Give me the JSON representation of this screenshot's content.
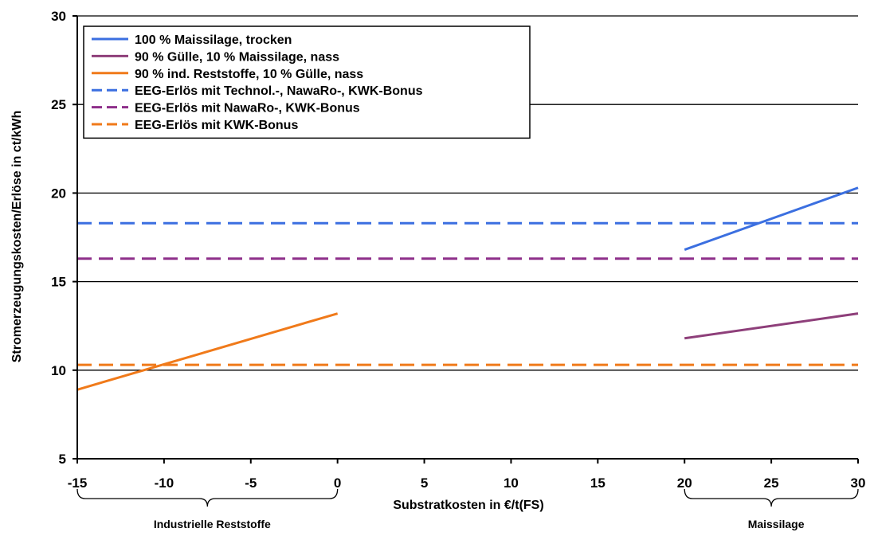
{
  "chart_data": {
    "type": "line",
    "title": "",
    "xlabel": "Substratkosten in €/t(FS)",
    "ylabel": "Stromerzeugungskosten/Erlöse in ct/kWh",
    "xlim": [
      -15,
      30
    ],
    "ylim": [
      5,
      30
    ],
    "xticks": [
      -15,
      -10,
      -5,
      0,
      5,
      10,
      15,
      20,
      25,
      30
    ],
    "yticks": [
      5,
      10,
      15,
      20,
      25,
      30
    ],
    "grid": "horizontal",
    "legend_position": "top-left",
    "series": [
      {
        "name": "100 % Maissilage, trocken",
        "color": "#3b6fe0",
        "style": "solid",
        "width": 3,
        "x": [
          20,
          30
        ],
        "y": [
          16.8,
          20.3
        ]
      },
      {
        "name": "90 % Gülle, 10 % Maissilage, nass",
        "color": "#8e3f7a",
        "style": "solid",
        "width": 3,
        "x": [
          20,
          30
        ],
        "y": [
          11.8,
          13.2
        ]
      },
      {
        "name": "90 % ind. Reststoffe, 10 % Gülle, nass",
        "color": "#f07a1a",
        "style": "solid",
        "width": 3,
        "x": [
          -15,
          0
        ],
        "y": [
          8.9,
          13.2
        ]
      },
      {
        "name": "EEG-Erlös mit Technol.-, NawaRo-, KWK-Bonus",
        "color": "#3b6fe0",
        "style": "dashed",
        "width": 3,
        "x": [
          -15,
          30
        ],
        "y": [
          18.3,
          18.3
        ]
      },
      {
        "name": "EEG-Erlös mit NawaRo-, KWK-Bonus",
        "color": "#8e2f8a",
        "style": "dashed",
        "width": 3,
        "x": [
          -15,
          30
        ],
        "y": [
          16.3,
          16.3
        ]
      },
      {
        "name": "EEG-Erlös mit KWK-Bonus",
        "color": "#f07a1a",
        "style": "dashed",
        "width": 3,
        "x": [
          -15,
          30
        ],
        "y": [
          10.3,
          10.3
        ]
      }
    ],
    "annotations": [
      {
        "text": "Industrielle Reststoffe",
        "x_range": [
          -15,
          0
        ]
      },
      {
        "text": "Maissilage",
        "x_range": [
          20,
          30
        ]
      }
    ]
  }
}
